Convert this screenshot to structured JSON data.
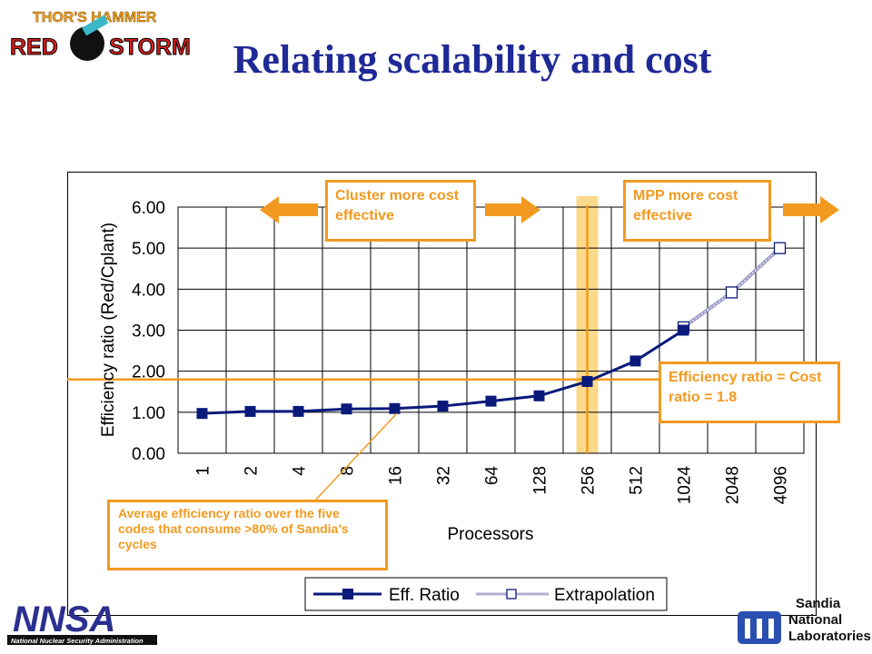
{
  "slide": {
    "title": "Relating scalability and cost",
    "logo_text": [
      "THOR'S HAMMER",
      "RED",
      "STORM"
    ],
    "nnsa_logo_text": [
      "NNSA",
      "National Nuclear Security Administration"
    ],
    "sandia_logo_text": [
      "Sandia",
      "National",
      "Laboratories"
    ]
  },
  "colors": {
    "title": "#1f2a96",
    "series": "#0a1a7a",
    "accent_orange": "#f29a1f",
    "highlight_band": "#fbd98a"
  },
  "callouts": {
    "cluster": "Cluster more cost effective",
    "mpp": "MPP more cost effective",
    "efficiency": "Efficiency ratio = Cost ratio = 1.8",
    "average": "Average efficiency ratio over the five codes that consume >80% of Sandia’s cycles"
  },
  "chart_data": {
    "type": "line",
    "xlabel": "Processors",
    "ylabel": "Efficiency ratio (Red/Cplant)",
    "categories": [
      "1",
      "2",
      "4",
      "8",
      "16",
      "32",
      "64",
      "128",
      "256",
      "512",
      "1024",
      "2048",
      "4096"
    ],
    "ylim": [
      0,
      6
    ],
    "yticks": [
      "0.00",
      "1.00",
      "2.00",
      "3.00",
      "4.00",
      "5.00",
      "6.00"
    ],
    "grid": true,
    "legend_position": "bottom",
    "series": [
      {
        "name": "Eff. Ratio",
        "values": [
          0.97,
          1.02,
          1.02,
          1.08,
          1.09,
          1.15,
          1.27,
          1.4,
          1.75,
          2.25,
          3.0,
          null,
          null
        ]
      },
      {
        "name": "Extrapolation",
        "values": [
          null,
          null,
          null,
          null,
          null,
          null,
          null,
          null,
          null,
          null,
          3.07,
          3.92,
          5.0
        ]
      }
    ],
    "reference_line_y": 1.8,
    "highlight_category": "256"
  }
}
